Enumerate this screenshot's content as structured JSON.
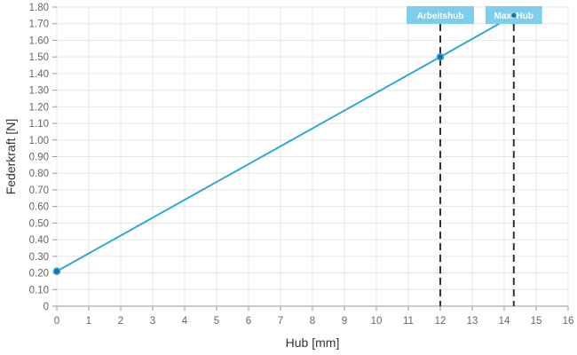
{
  "chart_data": {
    "type": "line",
    "xlabel": "Hub [mm]",
    "ylabel": "Federkraft [N]",
    "xlim": [
      0,
      16
    ],
    "ylim": [
      0,
      1.8
    ],
    "x_ticks": [
      "0",
      "1",
      "2",
      "3",
      "4",
      "5",
      "6",
      "7",
      "8",
      "9",
      "10",
      "11",
      "12",
      "13",
      "14",
      "15",
      "16"
    ],
    "y_ticks": [
      "0",
      "0.10",
      "0.20",
      "0.30",
      "0.40",
      "0.50",
      "0.60",
      "0.70",
      "0.80",
      "0.90",
      "1.00",
      "1.10",
      "1.20",
      "1.30",
      "1.40",
      "1.50",
      "1.60",
      "1.70",
      "1.80"
    ],
    "grid": true,
    "series": [
      {
        "color": "#2ea8d8",
        "points": [
          {
            "x": 0,
            "y": 0.21
          },
          {
            "x": 12,
            "y": 1.5
          },
          {
            "x": 14.3,
            "y": 1.75
          }
        ]
      }
    ],
    "markers": [
      {
        "label": "Arbeitshub",
        "x": 12
      },
      {
        "label": "Max. Hub",
        "x": 14.3
      }
    ],
    "colors": {
      "line": "#2ea8d8",
      "label_bg": "#7ecdec",
      "grid": "#e6e6e6",
      "marker_line": "#333333"
    }
  }
}
